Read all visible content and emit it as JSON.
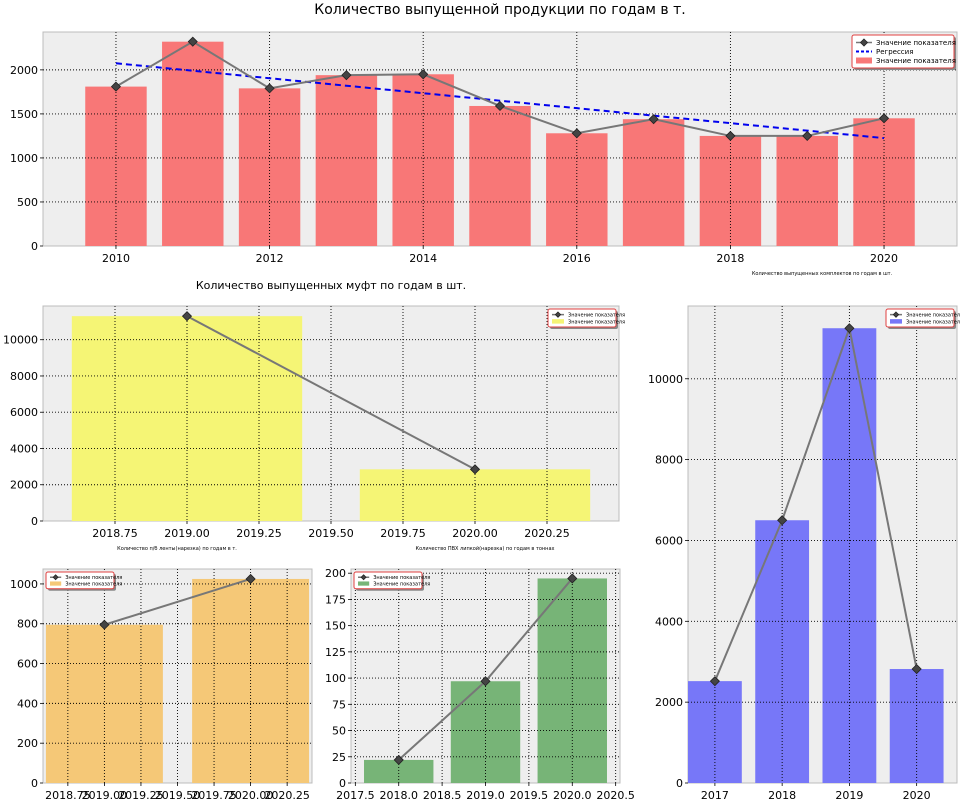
{
  "chart_data": [
    {
      "id": "main",
      "type": "bar",
      "title": "Количество выпущенной продукции по годам в т.",
      "x": [
        2010,
        2011,
        2012,
        2013,
        2014,
        2015,
        2016,
        2017,
        2018,
        2019,
        2020
      ],
      "series": [
        {
          "name": "Значение показателя",
          "kind": "bar",
          "values": [
            1810,
            2320,
            1790,
            1940,
            1950,
            1590,
            1280,
            1440,
            1250,
            1250,
            1450
          ],
          "color": "#f87777"
        },
        {
          "name": "Значение показателя",
          "kind": "line",
          "values": [
            1810,
            2320,
            1790,
            1940,
            1950,
            1590,
            1280,
            1440,
            1250,
            1250,
            1450
          ],
          "color": "#777777"
        },
        {
          "name": "Регрессия",
          "kind": "dashed",
          "values": [
            2075,
            1990,
            1905,
            1820,
            1735,
            1650,
            1565,
            1480,
            1395,
            1310,
            1225
          ],
          "color": "#0000ee"
        }
      ],
      "legend": [
        {
          "label": "Значение показателя",
          "kind": "line"
        },
        {
          "label": "Регрессия",
          "kind": "dashed"
        },
        {
          "label": "Значение показателя",
          "kind": "bar"
        }
      ],
      "xticks": [
        2010,
        2012,
        2014,
        2016,
        2018,
        2020
      ],
      "yticks": [
        0,
        500,
        1000,
        1500,
        2000
      ],
      "xlim": [
        2009.05,
        2020.95
      ],
      "ylim": [
        0,
        2430
      ],
      "grid": true,
      "legend_position": "top-right"
    },
    {
      "id": "muft",
      "type": "bar",
      "title": "Количество выпущенных муфт по годам в шт.",
      "x": [
        2019,
        2020
      ],
      "series": [
        {
          "name": "Значение показателя",
          "kind": "bar",
          "values": [
            11300,
            2850
          ],
          "color": "#f5f575"
        },
        {
          "name": "Значение показателя",
          "kind": "line",
          "values": [
            11300,
            2850
          ],
          "color": "#777777"
        }
      ],
      "legend": [
        {
          "label": "Значение показателя",
          "kind": "line"
        },
        {
          "label": "Значение показателя",
          "kind": "bar"
        }
      ],
      "xticks": [
        "2018.75",
        "2019.00",
        "2019.25",
        "2019.50",
        "2019.75",
        "2020.00",
        "2020.25"
      ],
      "xtick_values": [
        2018.75,
        2019.0,
        2019.25,
        2019.5,
        2019.75,
        2020.0,
        2020.25
      ],
      "yticks": [
        0,
        2000,
        4000,
        6000,
        8000,
        10000
      ],
      "xlim": [
        2018.5,
        2020.5
      ],
      "ylim": [
        0,
        11860
      ],
      "bar_width": 0.8,
      "grid": true,
      "legend_position": "top-right"
    },
    {
      "id": "komplekt",
      "type": "bar",
      "title": "Количество выпущенных комплектов по годам в шт.",
      "x": [
        2017,
        2018,
        2019,
        2020
      ],
      "series": [
        {
          "name": "Значение показателя",
          "kind": "bar",
          "values": [
            2520,
            6500,
            11250,
            2820
          ],
          "color": "#7777f8"
        },
        {
          "name": "Значение показателя",
          "kind": "line",
          "values": [
            2520,
            6500,
            11250,
            2820
          ],
          "color": "#777777"
        }
      ],
      "legend": [
        {
          "label": "Значение показателя",
          "kind": "line"
        },
        {
          "label": "Значение показателя",
          "kind": "bar"
        }
      ],
      "xticks": [
        2017,
        2018,
        2019,
        2020
      ],
      "yticks": [
        0,
        2000,
        4000,
        6000,
        8000,
        10000
      ],
      "xlim": [
        2016.6,
        2020.6
      ],
      "ylim": [
        0,
        11800
      ],
      "bar_width": 0.8,
      "grid": true,
      "legend_position": "top-right"
    },
    {
      "id": "lenta",
      "type": "bar",
      "title": "Количество п/б ленты(нарезка) по годам в т.",
      "x": [
        2019,
        2020
      ],
      "series": [
        {
          "name": "Значение показателя",
          "kind": "bar",
          "values": [
            795,
            1025
          ],
          "color": "#f5c877"
        },
        {
          "name": "Значение показателя",
          "kind": "line",
          "values": [
            795,
            1025
          ],
          "color": "#777777"
        }
      ],
      "legend": [
        {
          "label": "Значение показателя",
          "kind": "line"
        },
        {
          "label": "Значение показателя",
          "kind": "bar"
        }
      ],
      "xticks": [
        "2018.75",
        "2019.00",
        "2019.25",
        "2019.50",
        "2019.75",
        "2020.00",
        "2020.25"
      ],
      "xtick_values": [
        2018.75,
        2019.0,
        2019.25,
        2019.5,
        2019.75,
        2020.0,
        2020.25
      ],
      "yticks": [
        0,
        200,
        400,
        600,
        800,
        1000
      ],
      "xlim": [
        2018.58,
        2020.42
      ],
      "ylim": [
        0,
        1075
      ],
      "bar_width": 0.8,
      "grid": true,
      "legend_position": "top-left"
    },
    {
      "id": "pvh",
      "type": "bar",
      "title": "Количество ПВХ липкой(нарезка) по годам в тоннах",
      "x": [
        2018,
        2019,
        2020
      ],
      "series": [
        {
          "name": "Значение показателя",
          "kind": "bar",
          "values": [
            22,
            97,
            195
          ],
          "color": "#77b477"
        },
        {
          "name": "Значение показателя",
          "kind": "line",
          "values": [
            22,
            97,
            195
          ],
          "color": "#777777"
        }
      ],
      "legend": [
        {
          "label": "Значение показателя",
          "kind": "line"
        },
        {
          "label": "Значение показателя",
          "kind": "bar"
        }
      ],
      "xticks": [
        "2017.5",
        "2018.0",
        "2018.5",
        "2019.0",
        "2019.5",
        "2020.0",
        "2020.5"
      ],
      "xtick_values": [
        2017.5,
        2018.0,
        2018.5,
        2019.0,
        2019.5,
        2020.0,
        2020.5
      ],
      "yticks": [
        0,
        25,
        50,
        75,
        100,
        125,
        150,
        175,
        200
      ],
      "xlim": [
        2017.45,
        2020.55
      ],
      "ylim": [
        0,
        204
      ],
      "bar_width": 0.8,
      "grid": true,
      "legend_position": "top-left"
    }
  ],
  "colors": {
    "axes_background": "#eeeeee",
    "axes_border": "#bcbcbc",
    "grid": "#000000",
    "line": "#777777",
    "marker": "#444444",
    "regression": "#0000ee"
  }
}
